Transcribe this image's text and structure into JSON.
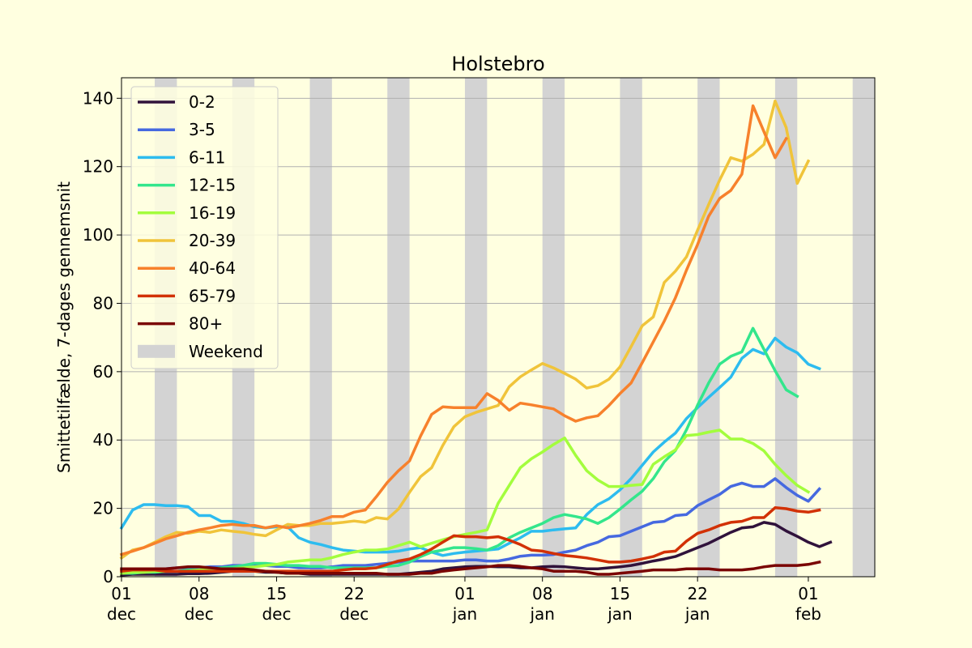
{
  "chart_data": {
    "type": "line",
    "title": "Holstebro",
    "ylabel": "Smittetilfælde, 7-dages gennemsnit",
    "xlabel": "",
    "ylim": [
      0,
      146
    ],
    "yticks": [
      0,
      20,
      40,
      60,
      80,
      100,
      120,
      140
    ],
    "grid": "horizontal",
    "legend_position": "top-left",
    "xrange": [
      "2021-12-01",
      "2022-02-07"
    ],
    "xticks": [
      {
        "date": "2021-12-01",
        "day": "01",
        "month": "dec"
      },
      {
        "date": "2021-12-08",
        "day": "08",
        "month": "dec"
      },
      {
        "date": "2021-12-15",
        "day": "15",
        "month": "dec"
      },
      {
        "date": "2021-12-22",
        "day": "22",
        "month": "dec"
      },
      {
        "date": "2022-01-01",
        "day": "01",
        "month": "jan"
      },
      {
        "date": "2022-01-08",
        "day": "08",
        "month": "jan"
      },
      {
        "date": "2022-01-15",
        "day": "15",
        "month": "jan"
      },
      {
        "date": "2022-01-22",
        "day": "22",
        "month": "jan"
      },
      {
        "date": "2022-02-01",
        "day": "01",
        "month": "feb"
      }
    ],
    "weekend_label": "Weekend",
    "weekend_color": "#d3d3d3",
    "weekends": [
      [
        "2021-12-04",
        "2021-12-06"
      ],
      [
        "2021-12-11",
        "2021-12-13"
      ],
      [
        "2021-12-18",
        "2021-12-20"
      ],
      [
        "2021-12-25",
        "2021-12-27"
      ],
      [
        "2022-01-01",
        "2022-01-03"
      ],
      [
        "2022-01-08",
        "2022-01-10"
      ],
      [
        "2022-01-15",
        "2022-01-17"
      ],
      [
        "2022-01-22",
        "2022-01-24"
      ],
      [
        "2022-01-29",
        "2022-01-31"
      ],
      [
        "2022-02-05",
        "2022-02-07"
      ]
    ],
    "x_start": "2021-12-01",
    "series": [
      {
        "name": "0-2",
        "color": "#30123b",
        "values": [
          0.5,
          0.7,
          0.7,
          0.7,
          0.7,
          0.7,
          0.9,
          0.9,
          1.0,
          1.3,
          1.6,
          1.6,
          1.6,
          1.3,
          1.3,
          1.0,
          1.0,
          0.7,
          0.7,
          0.7,
          0.7,
          0.7,
          0.7,
          0.7,
          0.7,
          0.7,
          1.0,
          1.3,
          1.6,
          2.3,
          2.6,
          2.9,
          3.0,
          3.0,
          2.9,
          2.9,
          2.6,
          2.6,
          2.9,
          3.0,
          2.9,
          2.6,
          2.3,
          2.3,
          2.6,
          2.9,
          3.3,
          3.9,
          4.6,
          5.2,
          5.9,
          7.2,
          8.5,
          9.8,
          11.4,
          13.0,
          14.3,
          14.6,
          15.9,
          15.3,
          13.4,
          11.8,
          10.1,
          8.8,
          10.1
        ]
      },
      {
        "name": "3-5",
        "color": "#4669e0",
        "values": [
          1.6,
          1.6,
          2.0,
          2.3,
          2.3,
          2.6,
          2.6,
          2.6,
          2.9,
          2.9,
          3.3,
          3.3,
          3.3,
          3.3,
          3.0,
          3.0,
          2.6,
          2.6,
          2.6,
          2.9,
          3.3,
          3.3,
          3.3,
          3.6,
          3.9,
          4.3,
          4.6,
          4.6,
          4.6,
          4.6,
          4.6,
          4.9,
          4.9,
          4.6,
          4.6,
          5.2,
          6.0,
          6.3,
          6.3,
          6.5,
          7.2,
          7.8,
          9.1,
          10.1,
          11.7,
          12.0,
          13.3,
          14.6,
          15.9,
          16.2,
          17.9,
          18.2,
          20.8,
          22.5,
          24.1,
          26.4,
          27.4,
          26.4,
          26.4,
          28.7,
          26.1,
          23.8,
          22.1,
          25.7
        ]
      },
      {
        "name": "6-11",
        "color": "#2dbcef",
        "values": [
          14.3,
          19.5,
          21.1,
          21.1,
          20.8,
          20.8,
          20.5,
          17.9,
          17.9,
          16.2,
          16.2,
          15.6,
          14.6,
          14.3,
          14.6,
          14.6,
          11.4,
          10.1,
          9.4,
          8.5,
          7.8,
          7.5,
          7.2,
          7.2,
          7.2,
          7.5,
          8.1,
          8.5,
          7.2,
          6.2,
          6.8,
          7.2,
          7.5,
          7.8,
          8.1,
          9.8,
          11.4,
          13.3,
          13.3,
          13.7,
          14.0,
          14.3,
          18.2,
          21.1,
          22.8,
          25.4,
          28.7,
          32.6,
          36.5,
          39.4,
          42.0,
          46.3,
          49.5,
          52.5,
          55.4,
          58.4,
          63.9,
          66.5,
          65.2,
          69.8,
          67.2,
          65.5,
          62.2,
          60.9
        ]
      },
      {
        "name": "12-15",
        "color": "#33e68c",
        "values": [
          1.0,
          1.0,
          1.3,
          1.3,
          1.6,
          1.6,
          2.0,
          2.0,
          2.3,
          2.6,
          2.9,
          3.3,
          3.9,
          3.9,
          3.6,
          3.3,
          3.3,
          3.0,
          3.0,
          2.6,
          2.6,
          2.6,
          2.6,
          2.6,
          3.0,
          3.3,
          4.3,
          5.9,
          7.2,
          7.8,
          8.5,
          8.5,
          8.2,
          7.8,
          9.1,
          11.4,
          13.0,
          14.3,
          15.6,
          17.3,
          18.2,
          17.6,
          16.9,
          15.6,
          17.3,
          19.8,
          22.5,
          25.0,
          28.7,
          33.6,
          36.9,
          43.0,
          50.2,
          56.7,
          62.2,
          64.5,
          65.8,
          72.7,
          66.5,
          60.3,
          54.7,
          52.8
        ]
      },
      {
        "name": "16-19",
        "color": "#a3fd3d",
        "values": [
          1.0,
          1.3,
          1.3,
          1.6,
          1.6,
          1.6,
          1.6,
          2.0,
          2.0,
          2.3,
          2.3,
          2.6,
          2.9,
          3.3,
          3.6,
          4.3,
          4.6,
          4.9,
          4.9,
          5.6,
          6.5,
          7.2,
          7.8,
          7.8,
          8.1,
          9.1,
          10.1,
          8.8,
          9.8,
          10.8,
          11.7,
          12.4,
          13.0,
          13.7,
          21.5,
          26.7,
          31.9,
          34.5,
          36.5,
          38.7,
          40.6,
          35.5,
          31.0,
          28.3,
          26.4,
          26.4,
          26.7,
          27.0,
          32.9,
          35.1,
          37.1,
          41.3,
          41.6,
          42.3,
          42.9,
          40.3,
          40.3,
          39.0,
          36.8,
          32.9,
          29.6,
          26.7,
          24.8
        ]
      },
      {
        "name": "20-39",
        "color": "#f0c43a",
        "values": [
          5.5,
          7.8,
          8.5,
          10.1,
          11.7,
          13.0,
          12.7,
          13.3,
          13.0,
          13.7,
          13.3,
          13.0,
          12.4,
          12.0,
          13.7,
          15.3,
          15.0,
          15.0,
          15.6,
          15.6,
          15.9,
          16.3,
          15.9,
          17.3,
          16.9,
          19.8,
          24.7,
          29.3,
          31.9,
          38.4,
          43.9,
          46.8,
          48.1,
          49.1,
          50.1,
          55.6,
          58.5,
          60.5,
          62.4,
          61.1,
          59.5,
          57.8,
          55.2,
          55.9,
          57.8,
          61.4,
          67.3,
          73.4,
          76.0,
          86.1,
          89.4,
          93.6,
          101.4,
          108.9,
          116.1,
          122.6,
          121.6,
          123.6,
          126.5,
          139.2,
          131.4,
          115.1,
          121.6
        ]
      },
      {
        "name": "40-64",
        "color": "#f7812c",
        "values": [
          6.5,
          7.5,
          8.5,
          9.8,
          11.1,
          12.0,
          13.0,
          13.7,
          14.3,
          15.0,
          15.3,
          15.0,
          15.0,
          14.3,
          14.9,
          14.3,
          14.9,
          15.6,
          16.5,
          17.6,
          17.6,
          18.9,
          19.5,
          23.4,
          27.6,
          31.0,
          33.9,
          41.2,
          47.5,
          49.7,
          49.5,
          49.5,
          49.5,
          53.6,
          51.6,
          48.7,
          50.8,
          50.3,
          49.7,
          49.1,
          47.1,
          45.5,
          46.5,
          47.1,
          50.1,
          53.6,
          56.7,
          62.6,
          68.7,
          74.8,
          81.6,
          89.7,
          97.2,
          105.5,
          110.7,
          113.0,
          117.8,
          137.8,
          130.2,
          122.6,
          128.2
        ]
      },
      {
        "name": "65-79",
        "color": "#d23105",
        "values": [
          1.6,
          2.0,
          2.0,
          2.0,
          1.6,
          1.6,
          1.6,
          1.6,
          1.6,
          1.6,
          1.6,
          1.6,
          1.6,
          1.6,
          1.6,
          1.6,
          1.6,
          1.6,
          1.6,
          1.6,
          2.0,
          2.3,
          2.3,
          2.6,
          3.6,
          4.6,
          5.2,
          6.5,
          8.1,
          10.1,
          12.0,
          11.7,
          11.7,
          11.4,
          11.7,
          10.7,
          9.4,
          7.8,
          7.5,
          6.8,
          6.2,
          5.9,
          5.5,
          4.9,
          4.3,
          4.3,
          4.6,
          5.2,
          5.9,
          7.2,
          7.5,
          10.4,
          12.7,
          13.7,
          15.0,
          15.9,
          16.2,
          17.3,
          17.3,
          20.2,
          19.9,
          19.2,
          18.9,
          19.5
        ]
      },
      {
        "name": "80+",
        "color": "#7a0403",
        "values": [
          2.3,
          2.3,
          2.3,
          2.3,
          2.3,
          2.6,
          2.9,
          2.9,
          2.6,
          2.3,
          2.3,
          2.3,
          2.0,
          1.6,
          1.3,
          1.0,
          1.0,
          1.0,
          1.0,
          1.0,
          1.0,
          1.0,
          1.0,
          1.0,
          0.7,
          0.7,
          0.7,
          1.0,
          1.0,
          1.6,
          2.0,
          2.3,
          2.6,
          2.9,
          3.3,
          3.3,
          3.0,
          2.6,
          2.3,
          1.6,
          1.6,
          1.6,
          1.3,
          0.7,
          0.7,
          1.0,
          1.3,
          1.6,
          2.0,
          2.0,
          2.0,
          2.3,
          2.3,
          2.3,
          2.0,
          2.0,
          2.0,
          2.3,
          2.9,
          3.3,
          3.3,
          3.3,
          3.6,
          4.3
        ]
      }
    ]
  }
}
